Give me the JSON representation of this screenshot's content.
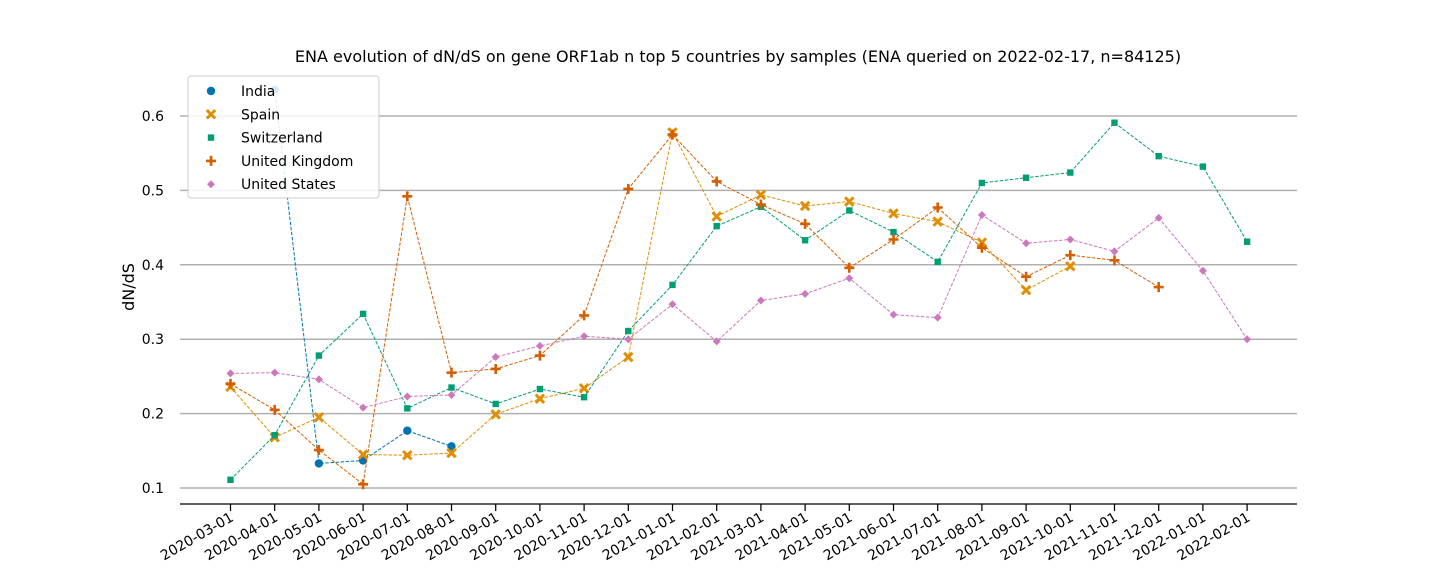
{
  "chart_data": {
    "type": "line",
    "title": "ENA evolution of dN/dS on gene ORF1ab n top 5 countries by samples (ENA queried on 2022-02-17, n=84125)",
    "xlabel": "",
    "ylabel": "dN/dS",
    "ylim": [
      0.08,
      0.65
    ],
    "yticks": [
      0.1,
      0.2,
      0.3,
      0.4,
      0.5,
      0.6
    ],
    "ytick_labels": [
      "0.1",
      "0.2",
      "0.3",
      "0.4",
      "0.5",
      "0.6"
    ],
    "grid": "horizontal",
    "legend_position": "top-left",
    "categories": [
      "2020-03-01",
      "2020-04-01",
      "2020-05-01",
      "2020-06-01",
      "2020-07-01",
      "2020-08-01",
      "2020-09-01",
      "2020-10-01",
      "2020-11-01",
      "2020-12-01",
      "2021-01-01",
      "2021-02-01",
      "2021-03-01",
      "2021-04-01",
      "2021-05-01",
      "2021-06-01",
      "2021-07-01",
      "2021-08-01",
      "2021-09-01",
      "2021-10-01",
      "2021-11-01",
      "2021-12-01",
      "2022-01-01",
      "2022-02-01"
    ],
    "series": [
      {
        "name": "India",
        "color": "#0173b2",
        "marker": "circle",
        "values": [
          null,
          0.635,
          0.133,
          0.137,
          0.177,
          0.156,
          null,
          null,
          null,
          null,
          null,
          null,
          null,
          null,
          null,
          null,
          null,
          null,
          null,
          null,
          null,
          null,
          null,
          null
        ]
      },
      {
        "name": "Spain",
        "color": "#de8f05",
        "marker": "x",
        "values": [
          0.236,
          0.168,
          0.195,
          0.145,
          0.144,
          0.147,
          0.199,
          0.22,
          0.234,
          0.276,
          0.578,
          0.465,
          0.494,
          0.479,
          0.485,
          0.469,
          0.458,
          0.43,
          0.366,
          0.398,
          null,
          null,
          null,
          null
        ]
      },
      {
        "name": "Switzerland",
        "color": "#029e73",
        "marker": "square",
        "values": [
          0.111,
          0.171,
          0.278,
          0.334,
          0.207,
          0.235,
          0.213,
          0.233,
          0.222,
          0.311,
          0.373,
          0.452,
          0.478,
          0.433,
          0.473,
          0.444,
          0.404,
          0.51,
          0.517,
          0.524,
          0.591,
          0.546,
          0.532,
          0.431
        ]
      },
      {
        "name": "United Kingdom",
        "color": "#d55e00",
        "marker": "plus",
        "values": [
          0.24,
          0.205,
          0.151,
          0.105,
          0.492,
          0.255,
          0.26,
          0.278,
          0.332,
          0.502,
          0.575,
          0.512,
          0.481,
          0.455,
          0.396,
          0.434,
          0.477,
          0.423,
          0.384,
          0.413,
          0.406,
          0.37,
          null,
          null
        ]
      },
      {
        "name": "United States",
        "color": "#cc78bc",
        "marker": "diamond",
        "values": [
          0.254,
          0.255,
          0.246,
          0.208,
          0.223,
          0.225,
          0.276,
          0.291,
          0.304,
          0.3,
          0.347,
          0.297,
          0.352,
          0.361,
          0.382,
          0.333,
          0.329,
          0.467,
          0.429,
          0.434,
          0.418,
          0.463,
          0.392,
          0.3
        ]
      }
    ]
  }
}
